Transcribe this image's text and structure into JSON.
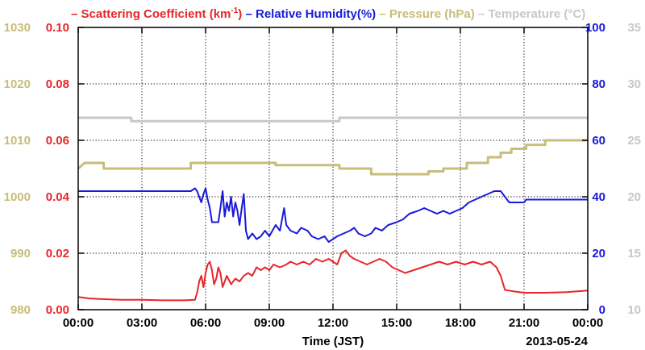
{
  "chart_data": {
    "type": "line",
    "title_segments": [
      {
        "label": "Scattering Coefficient (km",
        "sup": "-1",
        "suffix": ")",
        "color": "#e8262a"
      },
      {
        "label": "Relative Humidity(%)",
        "color": "#1a1adb"
      },
      {
        "label": "Pressure (hPa)",
        "color": "#c8bd7a"
      },
      {
        "label": "Temperature (°C)",
        "color": "#c8c8c8"
      }
    ],
    "xlabel": "Time (JST)",
    "date_label": "2013-05-24",
    "x_ticks": [
      "00:00",
      "03:00",
      "06:00",
      "09:00",
      "12:00",
      "15:00",
      "18:00",
      "21:00",
      "00:00"
    ],
    "xlim_hours": [
      0,
      24
    ],
    "grid": true,
    "axes": {
      "pressure": {
        "color": "#c8bd7a",
        "ylim": [
          980,
          1030
        ],
        "ticks": [
          "980",
          "990",
          "1000",
          "1010",
          "1020",
          "1030"
        ]
      },
      "scattering": {
        "color": "#e8262a",
        "ylim": [
          0,
          0.1
        ],
        "ticks": [
          "0.00",
          "0.02",
          "0.04",
          "0.06",
          "0.08",
          "0.10"
        ]
      },
      "humidity": {
        "color": "#1a1adb",
        "ylim": [
          0,
          100
        ],
        "ticks": [
          "0",
          "20",
          "40",
          "60",
          "80",
          "100"
        ]
      },
      "temperature": {
        "color": "#c8c8c8",
        "ylim": [
          10,
          35
        ],
        "ticks": [
          "10",
          "15",
          "20",
          "25",
          "30",
          "35"
        ]
      }
    },
    "series": [
      {
        "name": "Temperature (°C)",
        "axis": "temperature",
        "color": "#c8c8c8",
        "step": true,
        "points": [
          [
            0,
            27
          ],
          [
            2.5,
            27
          ],
          [
            2.5,
            26.7
          ],
          [
            12.3,
            26.7
          ],
          [
            12.3,
            27
          ],
          [
            24,
            27
          ]
        ]
      },
      {
        "name": "Pressure (hPa)",
        "axis": "pressure",
        "color": "#c8bd7a",
        "step": true,
        "points": [
          [
            0,
            1005
          ],
          [
            0.3,
            1006
          ],
          [
            1.2,
            1006
          ],
          [
            1.2,
            1005
          ],
          [
            5.3,
            1005
          ],
          [
            5.3,
            1006
          ],
          [
            9.3,
            1006
          ],
          [
            9.3,
            1005.6
          ],
          [
            11,
            1005.6
          ],
          [
            12.3,
            1005.6
          ],
          [
            12.3,
            1005
          ],
          [
            13.8,
            1005
          ],
          [
            13.8,
            1004
          ],
          [
            16.5,
            1004
          ],
          [
            16.5,
            1004.5
          ],
          [
            17.2,
            1004.5
          ],
          [
            17.2,
            1005
          ],
          [
            18.3,
            1005
          ],
          [
            18.3,
            1006
          ],
          [
            19.3,
            1006
          ],
          [
            19.3,
            1007
          ],
          [
            19.9,
            1007
          ],
          [
            19.9,
            1007.8
          ],
          [
            20.4,
            1007.8
          ],
          [
            20.4,
            1008.5
          ],
          [
            21.1,
            1008.5
          ],
          [
            21.1,
            1009.2
          ],
          [
            22,
            1009.2
          ],
          [
            22,
            1010
          ],
          [
            24,
            1010
          ]
        ]
      },
      {
        "name": "Relative Humidity(%)",
        "axis": "humidity",
        "color": "#1a1adb",
        "step": false,
        "points": [
          [
            0,
            42
          ],
          [
            5.3,
            42
          ],
          [
            5.5,
            43
          ],
          [
            5.6,
            42
          ],
          [
            5.7,
            40
          ],
          [
            5.8,
            38
          ],
          [
            5.9,
            41
          ],
          [
            6.0,
            43
          ],
          [
            6.1,
            39
          ],
          [
            6.2,
            36
          ],
          [
            6.3,
            31
          ],
          [
            6.6,
            31
          ],
          [
            6.7,
            36
          ],
          [
            6.8,
            42
          ],
          [
            6.9,
            33
          ],
          [
            7.0,
            38
          ],
          [
            7.1,
            35
          ],
          [
            7.2,
            40
          ],
          [
            7.3,
            33
          ],
          [
            7.4,
            38
          ],
          [
            7.5,
            35
          ],
          [
            7.6,
            30
          ],
          [
            7.7,
            36
          ],
          [
            7.8,
            41
          ],
          [
            7.9,
            28
          ],
          [
            8.0,
            25
          ],
          [
            8.2,
            27
          ],
          [
            8.4,
            25
          ],
          [
            8.6,
            26
          ],
          [
            8.8,
            28
          ],
          [
            9.0,
            26
          ],
          [
            9.3,
            30
          ],
          [
            9.5,
            28
          ],
          [
            9.7,
            36
          ],
          [
            9.8,
            30
          ],
          [
            10.0,
            28
          ],
          [
            10.3,
            27
          ],
          [
            10.5,
            29
          ],
          [
            10.8,
            28
          ],
          [
            11.0,
            26
          ],
          [
            11.3,
            25
          ],
          [
            11.6,
            26
          ],
          [
            11.8,
            24
          ],
          [
            12.0,
            25
          ],
          [
            12.2,
            26
          ],
          [
            12.5,
            27
          ],
          [
            12.8,
            28
          ],
          [
            13.0,
            29
          ],
          [
            13.2,
            27
          ],
          [
            13.5,
            26
          ],
          [
            13.8,
            27
          ],
          [
            14.0,
            29
          ],
          [
            14.3,
            28
          ],
          [
            14.6,
            30
          ],
          [
            15.0,
            31
          ],
          [
            15.3,
            32
          ],
          [
            15.6,
            34
          ],
          [
            16.0,
            35
          ],
          [
            16.3,
            36
          ],
          [
            16.6,
            35
          ],
          [
            16.9,
            34
          ],
          [
            17.2,
            35
          ],
          [
            17.5,
            34
          ],
          [
            17.8,
            35
          ],
          [
            18.1,
            36
          ],
          [
            18.4,
            38
          ],
          [
            18.7,
            39
          ],
          [
            19.0,
            40
          ],
          [
            19.3,
            41
          ],
          [
            19.6,
            42
          ],
          [
            19.9,
            42
          ],
          [
            20.1,
            40
          ],
          [
            20.3,
            38
          ],
          [
            20.6,
            38
          ],
          [
            21.0,
            38
          ],
          [
            21.1,
            39
          ],
          [
            22.0,
            39
          ],
          [
            24,
            39
          ]
        ]
      },
      {
        "name": "Scattering Coefficient (km-1)",
        "axis": "scattering",
        "color": "#e8262a",
        "step": false,
        "points": [
          [
            0,
            0.0045
          ],
          [
            0.5,
            0.004
          ],
          [
            1,
            0.0038
          ],
          [
            2,
            0.0035
          ],
          [
            3,
            0.0035
          ],
          [
            4,
            0.0033
          ],
          [
            5,
            0.0033
          ],
          [
            5.5,
            0.0035
          ],
          [
            5.6,
            0.006
          ],
          [
            5.7,
            0.01
          ],
          [
            5.8,
            0.012
          ],
          [
            5.9,
            0.008
          ],
          [
            6.0,
            0.013
          ],
          [
            6.1,
            0.016
          ],
          [
            6.2,
            0.017
          ],
          [
            6.3,
            0.014
          ],
          [
            6.4,
            0.009
          ],
          [
            6.5,
            0.011
          ],
          [
            6.6,
            0.015
          ],
          [
            6.7,
            0.013
          ],
          [
            6.8,
            0.008
          ],
          [
            6.9,
            0.01
          ],
          [
            7.0,
            0.012
          ],
          [
            7.2,
            0.009
          ],
          [
            7.4,
            0.011
          ],
          [
            7.6,
            0.01
          ],
          [
            7.8,
            0.012
          ],
          [
            8.0,
            0.013
          ],
          [
            8.2,
            0.012
          ],
          [
            8.4,
            0.015
          ],
          [
            8.6,
            0.014
          ],
          [
            8.8,
            0.015
          ],
          [
            9.0,
            0.014
          ],
          [
            9.2,
            0.016
          ],
          [
            9.5,
            0.015
          ],
          [
            9.8,
            0.016
          ],
          [
            10.0,
            0.017
          ],
          [
            10.3,
            0.016
          ],
          [
            10.6,
            0.017
          ],
          [
            10.9,
            0.016
          ],
          [
            11.2,
            0.018
          ],
          [
            11.5,
            0.017
          ],
          [
            11.8,
            0.018
          ],
          [
            12.0,
            0.017
          ],
          [
            12.2,
            0.016
          ],
          [
            12.4,
            0.02
          ],
          [
            12.6,
            0.021
          ],
          [
            12.8,
            0.019
          ],
          [
            13.0,
            0.018
          ],
          [
            13.3,
            0.017
          ],
          [
            13.6,
            0.016
          ],
          [
            13.9,
            0.017
          ],
          [
            14.2,
            0.018
          ],
          [
            14.5,
            0.017
          ],
          [
            14.8,
            0.015
          ],
          [
            15.1,
            0.014
          ],
          [
            15.4,
            0.013
          ],
          [
            15.8,
            0.014
          ],
          [
            16.2,
            0.015
          ],
          [
            16.6,
            0.016
          ],
          [
            17.0,
            0.017
          ],
          [
            17.4,
            0.016
          ],
          [
            17.8,
            0.017
          ],
          [
            18.2,
            0.016
          ],
          [
            18.6,
            0.017
          ],
          [
            19.0,
            0.016
          ],
          [
            19.4,
            0.017
          ],
          [
            19.7,
            0.015
          ],
          [
            19.9,
            0.012
          ],
          [
            20.1,
            0.007
          ],
          [
            20.5,
            0.0065
          ],
          [
            21,
            0.006
          ],
          [
            22,
            0.006
          ],
          [
            23,
            0.0062
          ],
          [
            24,
            0.0068
          ]
        ]
      }
    ]
  }
}
